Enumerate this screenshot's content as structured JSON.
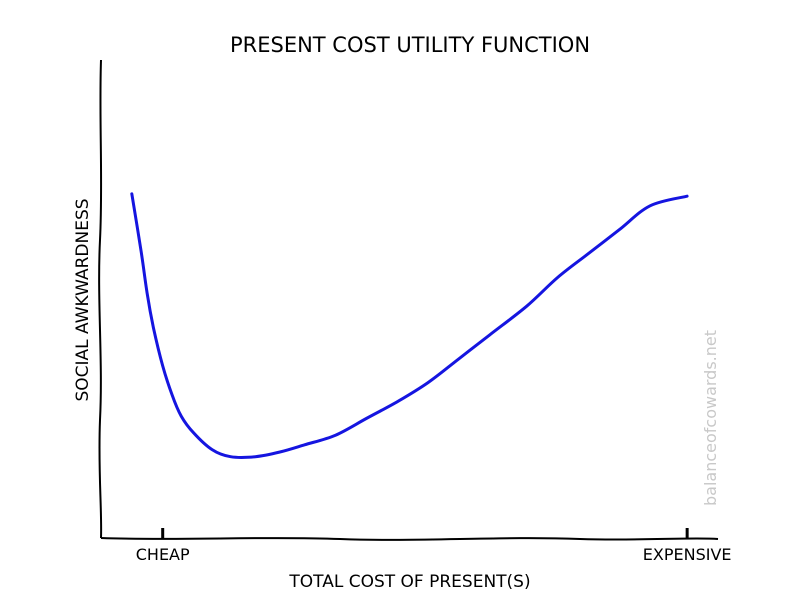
{
  "chart_data": {
    "type": "line",
    "title": "PRESENT COST UTILITY FUNCTION",
    "xlabel": "TOTAL COST OF PRESENT(S)",
    "ylabel": "SOCIAL AWKWARDNESS",
    "xlim": [
      0,
      10
    ],
    "ylim": [
      0,
      10
    ],
    "x_ticks": [
      {
        "value": 1,
        "label": "CHEAP"
      },
      {
        "value": 9.5,
        "label": "EXPENSIVE"
      }
    ],
    "grid": false,
    "series": [
      {
        "color": "#1515e0",
        "x": [
          0.5,
          0.65,
          0.75,
          0.85,
          1.0,
          1.15,
          1.3,
          1.5,
          1.8,
          2.1,
          2.5,
          2.9,
          3.3,
          3.8,
          4.3,
          4.8,
          5.3,
          5.8,
          6.3,
          6.9,
          7.4,
          7.9,
          8.4,
          8.9,
          9.5
        ],
        "y": [
          7.2,
          6.0,
          5.1,
          4.4,
          3.6,
          3.0,
          2.55,
          2.2,
          1.85,
          1.7,
          1.7,
          1.8,
          1.95,
          2.15,
          2.5,
          2.85,
          3.25,
          3.75,
          4.25,
          4.85,
          5.45,
          5.95,
          6.45,
          6.95,
          7.15
        ]
      }
    ]
  },
  "watermark": "balanceofcowards.net"
}
